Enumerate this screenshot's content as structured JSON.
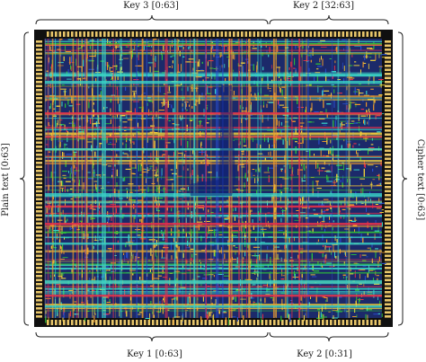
{
  "labels": {
    "top_left": "Key 3 [0:63]",
    "top_right": "Key 2 [32:63]",
    "bottom_left": "Key 1 [0:63]",
    "bottom_right": "Key 2 [0:31]",
    "left": "Plain text [0:63]",
    "right": "Cipher text [0:63]"
  },
  "layout_image": {
    "description_colors": {
      "background": "#1c2a6a",
      "border": "#101010",
      "pads": "#e8c66a",
      "green": "#2fbf3a",
      "yellow": "#f2d23a",
      "orange": "#f09a2a",
      "red": "#e5304a",
      "cyan": "#3ad6c8",
      "blue": "#2a4fd0",
      "dark_blue": "#0d1f7a"
    }
  }
}
